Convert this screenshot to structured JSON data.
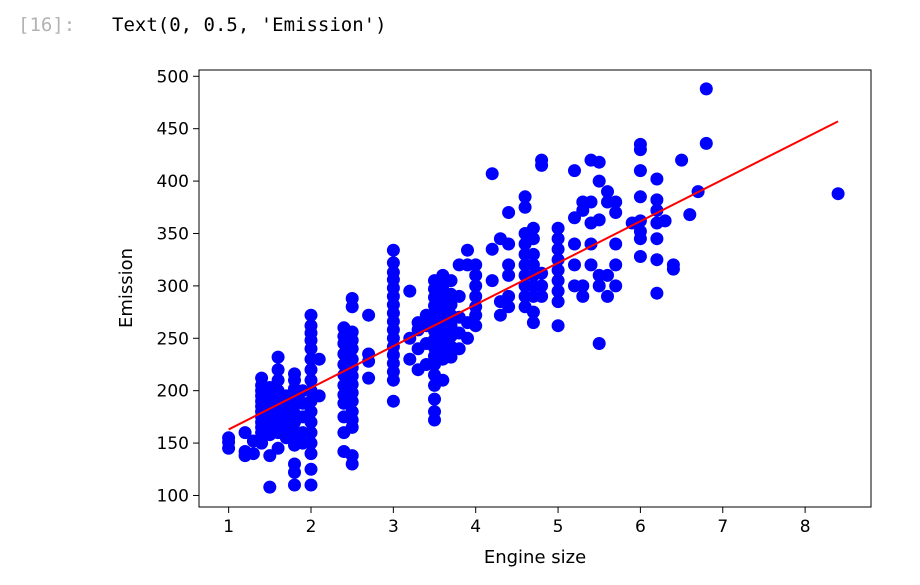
{
  "cell": {
    "prompt": "[16]:",
    "output_text": "Text(0, 0.5, 'Emission')"
  },
  "colors": {
    "scatter": "#0000ff",
    "line": "#ff0000"
  },
  "chart_data": {
    "type": "scatter",
    "title": "",
    "xlabel": "Engine size",
    "ylabel": "Emission",
    "xlim": [
      0.64,
      8.8
    ],
    "ylim": [
      89,
      506
    ],
    "xticks": [
      1,
      2,
      3,
      4,
      5,
      6,
      7,
      8
    ],
    "yticks": [
      100,
      150,
      200,
      250,
      300,
      350,
      400,
      450,
      500
    ],
    "grid": false,
    "legend": "none",
    "points": [
      [
        1.0,
        145
      ],
      [
        1.0,
        151
      ],
      [
        1.0,
        155
      ],
      [
        1.2,
        138
      ],
      [
        1.2,
        142
      ],
      [
        1.2,
        160
      ],
      [
        1.3,
        140
      ],
      [
        1.3,
        152
      ],
      [
        1.4,
        150
      ],
      [
        1.4,
        160
      ],
      [
        1.4,
        165
      ],
      [
        1.4,
        170
      ],
      [
        1.4,
        175
      ],
      [
        1.4,
        180
      ],
      [
        1.4,
        185
      ],
      [
        1.4,
        190
      ],
      [
        1.4,
        195
      ],
      [
        1.4,
        200
      ],
      [
        1.4,
        205
      ],
      [
        1.4,
        212
      ],
      [
        1.5,
        108
      ],
      [
        1.5,
        138
      ],
      [
        1.5,
        158
      ],
      [
        1.5,
        168
      ],
      [
        1.5,
        178
      ],
      [
        1.5,
        188
      ],
      [
        1.5,
        198
      ],
      [
        1.5,
        203
      ],
      [
        1.6,
        145
      ],
      [
        1.6,
        160
      ],
      [
        1.6,
        170
      ],
      [
        1.6,
        180
      ],
      [
        1.6,
        190
      ],
      [
        1.6,
        200
      ],
      [
        1.6,
        210
      ],
      [
        1.6,
        220
      ],
      [
        1.6,
        232
      ],
      [
        1.7,
        155
      ],
      [
        1.7,
        165
      ],
      [
        1.7,
        175
      ],
      [
        1.7,
        185
      ],
      [
        1.7,
        195
      ],
      [
        1.8,
        110
      ],
      [
        1.8,
        122
      ],
      [
        1.8,
        130
      ],
      [
        1.8,
        148
      ],
      [
        1.8,
        155
      ],
      [
        1.8,
        162
      ],
      [
        1.8,
        170
      ],
      [
        1.8,
        178
      ],
      [
        1.8,
        186
      ],
      [
        1.8,
        194
      ],
      [
        1.8,
        202
      ],
      [
        1.8,
        210
      ],
      [
        1.8,
        216
      ],
      [
        1.9,
        150
      ],
      [
        1.9,
        160
      ],
      [
        1.9,
        175
      ],
      [
        1.9,
        188
      ],
      [
        1.9,
        200
      ],
      [
        2.0,
        110
      ],
      [
        2.0,
        125
      ],
      [
        2.0,
        140
      ],
      [
        2.0,
        150
      ],
      [
        2.0,
        160
      ],
      [
        2.0,
        170
      ],
      [
        2.0,
        180
      ],
      [
        2.0,
        190
      ],
      [
        2.0,
        200
      ],
      [
        2.0,
        210
      ],
      [
        2.0,
        220
      ],
      [
        2.0,
        230
      ],
      [
        2.0,
        240
      ],
      [
        2.0,
        248
      ],
      [
        2.0,
        255
      ],
      [
        2.0,
        262
      ],
      [
        2.0,
        272
      ],
      [
        2.1,
        195
      ],
      [
        2.1,
        230
      ],
      [
        2.4,
        142
      ],
      [
        2.4,
        160
      ],
      [
        2.4,
        175
      ],
      [
        2.4,
        188
      ],
      [
        2.4,
        196
      ],
      [
        2.4,
        205
      ],
      [
        2.4,
        215
      ],
      [
        2.4,
        225
      ],
      [
        2.4,
        235
      ],
      [
        2.4,
        245
      ],
      [
        2.4,
        252
      ],
      [
        2.4,
        260
      ],
      [
        2.5,
        130
      ],
      [
        2.5,
        138
      ],
      [
        2.5,
        165
      ],
      [
        2.5,
        172
      ],
      [
        2.5,
        180
      ],
      [
        2.5,
        190
      ],
      [
        2.5,
        198
      ],
      [
        2.5,
        206
      ],
      [
        2.5,
        214
      ],
      [
        2.5,
        222
      ],
      [
        2.5,
        230
      ],
      [
        2.5,
        240
      ],
      [
        2.5,
        248
      ],
      [
        2.5,
        256
      ],
      [
        2.5,
        280
      ],
      [
        2.5,
        288
      ],
      [
        2.7,
        212
      ],
      [
        2.7,
        228
      ],
      [
        2.7,
        235
      ],
      [
        2.7,
        272
      ],
      [
        3.0,
        190
      ],
      [
        3.0,
        210
      ],
      [
        3.0,
        218
      ],
      [
        3.0,
        226
      ],
      [
        3.0,
        234
      ],
      [
        3.0,
        242
      ],
      [
        3.0,
        250
      ],
      [
        3.0,
        258
      ],
      [
        3.0,
        266
      ],
      [
        3.0,
        274
      ],
      [
        3.0,
        282
      ],
      [
        3.0,
        290
      ],
      [
        3.0,
        298
      ],
      [
        3.0,
        306
      ],
      [
        3.0,
        313
      ],
      [
        3.0,
        322
      ],
      [
        3.0,
        334
      ],
      [
        3.2,
        230
      ],
      [
        3.2,
        250
      ],
      [
        3.2,
        295
      ],
      [
        3.3,
        220
      ],
      [
        3.3,
        240
      ],
      [
        3.3,
        258
      ],
      [
        3.3,
        265
      ],
      [
        3.4,
        225
      ],
      [
        3.4,
        245
      ],
      [
        3.4,
        262
      ],
      [
        3.4,
        272
      ],
      [
        3.5,
        172
      ],
      [
        3.5,
        180
      ],
      [
        3.5,
        192
      ],
      [
        3.5,
        205
      ],
      [
        3.5,
        215
      ],
      [
        3.5,
        225
      ],
      [
        3.5,
        233
      ],
      [
        3.5,
        241
      ],
      [
        3.5,
        249
      ],
      [
        3.5,
        257
      ],
      [
        3.5,
        265
      ],
      [
        3.5,
        273
      ],
      [
        3.5,
        281
      ],
      [
        3.5,
        289
      ],
      [
        3.5,
        297
      ],
      [
        3.5,
        305
      ],
      [
        3.6,
        210
      ],
      [
        3.6,
        230
      ],
      [
        3.6,
        240
      ],
      [
        3.6,
        250
      ],
      [
        3.6,
        260
      ],
      [
        3.6,
        270
      ],
      [
        3.6,
        280
      ],
      [
        3.6,
        290
      ],
      [
        3.6,
        300
      ],
      [
        3.6,
        310
      ],
      [
        3.7,
        232
      ],
      [
        3.7,
        242
      ],
      [
        3.7,
        252
      ],
      [
        3.7,
        262
      ],
      [
        3.7,
        272
      ],
      [
        3.7,
        282
      ],
      [
        3.7,
        292
      ],
      [
        3.7,
        305
      ],
      [
        3.8,
        240
      ],
      [
        3.8,
        255
      ],
      [
        3.8,
        270
      ],
      [
        3.8,
        290
      ],
      [
        3.8,
        320
      ],
      [
        3.9,
        250
      ],
      [
        3.9,
        265
      ],
      [
        3.9,
        320
      ],
      [
        3.9,
        334
      ],
      [
        4.0,
        262
      ],
      [
        4.0,
        272
      ],
      [
        4.0,
        280
      ],
      [
        4.0,
        290
      ],
      [
        4.0,
        300
      ],
      [
        4.0,
        310
      ],
      [
        4.0,
        320
      ],
      [
        4.2,
        305
      ],
      [
        4.2,
        335
      ],
      [
        4.2,
        407
      ],
      [
        4.3,
        272
      ],
      [
        4.3,
        285
      ],
      [
        4.3,
        345
      ],
      [
        4.4,
        280
      ],
      [
        4.4,
        290
      ],
      [
        4.4,
        310
      ],
      [
        4.4,
        320
      ],
      [
        4.4,
        340
      ],
      [
        4.4,
        370
      ],
      [
        4.6,
        280
      ],
      [
        4.6,
        290
      ],
      [
        4.6,
        300
      ],
      [
        4.6,
        310
      ],
      [
        4.6,
        320
      ],
      [
        4.6,
        330
      ],
      [
        4.6,
        340
      ],
      [
        4.6,
        350
      ],
      [
        4.6,
        375
      ],
      [
        4.6,
        385
      ],
      [
        4.7,
        265
      ],
      [
        4.7,
        275
      ],
      [
        4.7,
        290
      ],
      [
        4.7,
        300
      ],
      [
        4.7,
        310
      ],
      [
        4.7,
        320
      ],
      [
        4.7,
        330
      ],
      [
        4.7,
        345
      ],
      [
        4.7,
        355
      ],
      [
        4.8,
        290
      ],
      [
        4.8,
        300
      ],
      [
        4.8,
        312
      ],
      [
        4.8,
        415
      ],
      [
        4.8,
        420
      ],
      [
        5.0,
        262
      ],
      [
        5.0,
        285
      ],
      [
        5.0,
        295
      ],
      [
        5.0,
        305
      ],
      [
        5.0,
        315
      ],
      [
        5.0,
        325
      ],
      [
        5.0,
        335
      ],
      [
        5.0,
        345
      ],
      [
        5.0,
        355
      ],
      [
        5.2,
        300
      ],
      [
        5.2,
        320
      ],
      [
        5.2,
        340
      ],
      [
        5.2,
        365
      ],
      [
        5.2,
        410
      ],
      [
        5.3,
        290
      ],
      [
        5.3,
        300
      ],
      [
        5.3,
        380
      ],
      [
        5.3,
        372
      ],
      [
        5.4,
        320
      ],
      [
        5.4,
        340
      ],
      [
        5.4,
        360
      ],
      [
        5.4,
        380
      ],
      [
        5.4,
        420
      ],
      [
        5.5,
        245
      ],
      [
        5.5,
        300
      ],
      [
        5.5,
        310
      ],
      [
        5.5,
        363
      ],
      [
        5.5,
        400
      ],
      [
        5.5,
        418
      ],
      [
        5.6,
        290
      ],
      [
        5.6,
        310
      ],
      [
        5.6,
        380
      ],
      [
        5.6,
        390
      ],
      [
        5.7,
        300
      ],
      [
        5.7,
        320
      ],
      [
        5.7,
        340
      ],
      [
        5.7,
        370
      ],
      [
        5.7,
        380
      ],
      [
        5.9,
        360
      ],
      [
        6.0,
        328
      ],
      [
        6.0,
        345
      ],
      [
        6.0,
        352
      ],
      [
        6.0,
        362
      ],
      [
        6.0,
        385
      ],
      [
        6.0,
        410
      ],
      [
        6.0,
        430
      ],
      [
        6.0,
        435
      ],
      [
        6.2,
        293
      ],
      [
        6.2,
        325
      ],
      [
        6.2,
        345
      ],
      [
        6.2,
        360
      ],
      [
        6.2,
        372
      ],
      [
        6.2,
        382
      ],
      [
        6.2,
        402
      ],
      [
        6.3,
        362
      ],
      [
        6.4,
        316
      ],
      [
        6.4,
        320
      ],
      [
        6.5,
        420
      ],
      [
        6.6,
        368
      ],
      [
        6.7,
        390
      ],
      [
        6.8,
        436
      ],
      [
        6.8,
        488
      ],
      [
        8.4,
        388
      ]
    ],
    "fit_line": {
      "x": [
        1.0,
        8.4
      ],
      "y": [
        163,
        457
      ]
    }
  }
}
